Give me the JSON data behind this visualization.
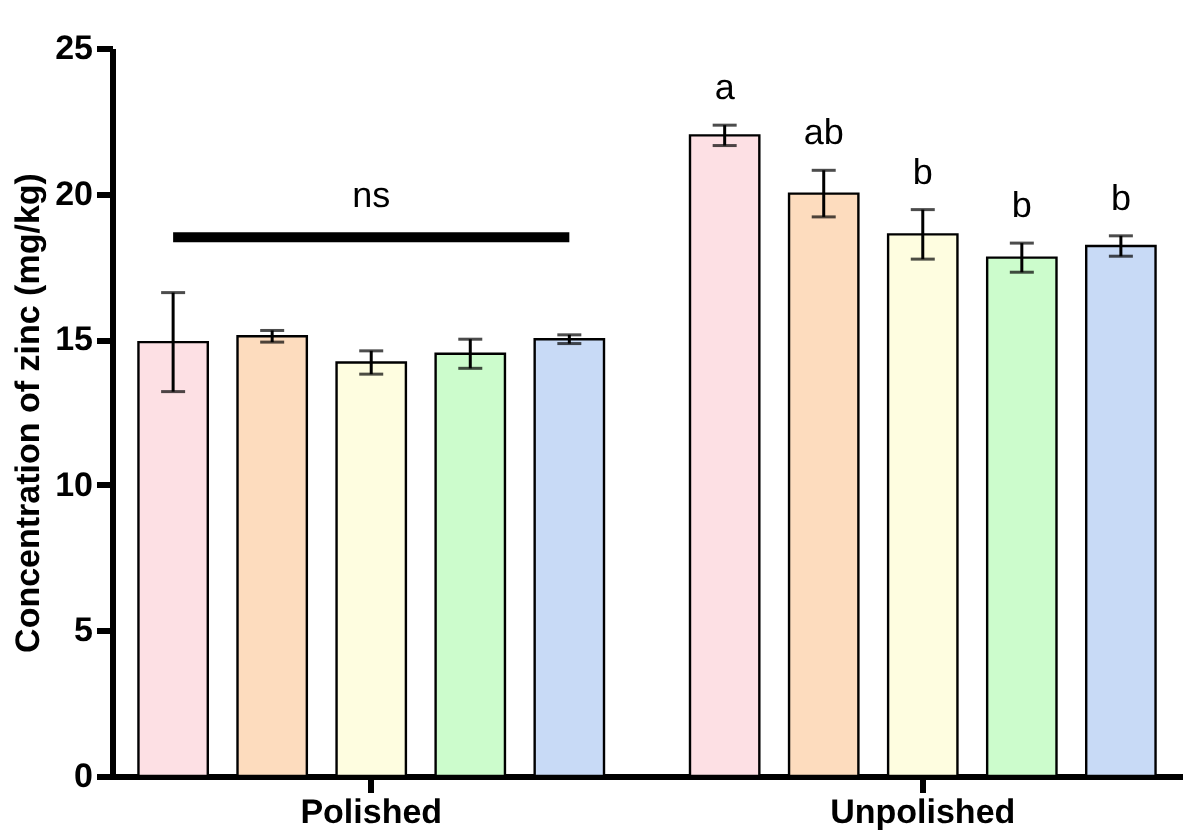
{
  "chart_data": {
    "type": "bar",
    "ylabel": "Concentration of zinc (mg/kg)",
    "categories": [
      "Polished",
      "Unpolished"
    ],
    "series": [
      {
        "color": "#fde0e4",
        "values": [
          14.9,
          22.0
        ],
        "errors": [
          1.7,
          0.35
        ]
      },
      {
        "color": "#fddcbe",
        "values": [
          15.1,
          20.0
        ],
        "errors": [
          0.2,
          0.8
        ]
      },
      {
        "color": "#fefde0",
        "values": [
          14.2,
          18.6
        ],
        "errors": [
          0.4,
          0.85
        ]
      },
      {
        "color": "#ccfccc",
        "values": [
          14.5,
          17.8
        ],
        "errors": [
          0.5,
          0.5
        ]
      },
      {
        "color": "#c8daf6",
        "values": [
          15.0,
          18.2
        ],
        "errors": [
          0.15,
          0.35
        ]
      }
    ],
    "annotations": [
      "ns",
      "a",
      "ab",
      "b",
      "b",
      "b"
    ],
    "ylim": [
      0,
      25
    ],
    "yticks": [
      0,
      5,
      10,
      15,
      20,
      25
    ],
    "grid": false
  }
}
